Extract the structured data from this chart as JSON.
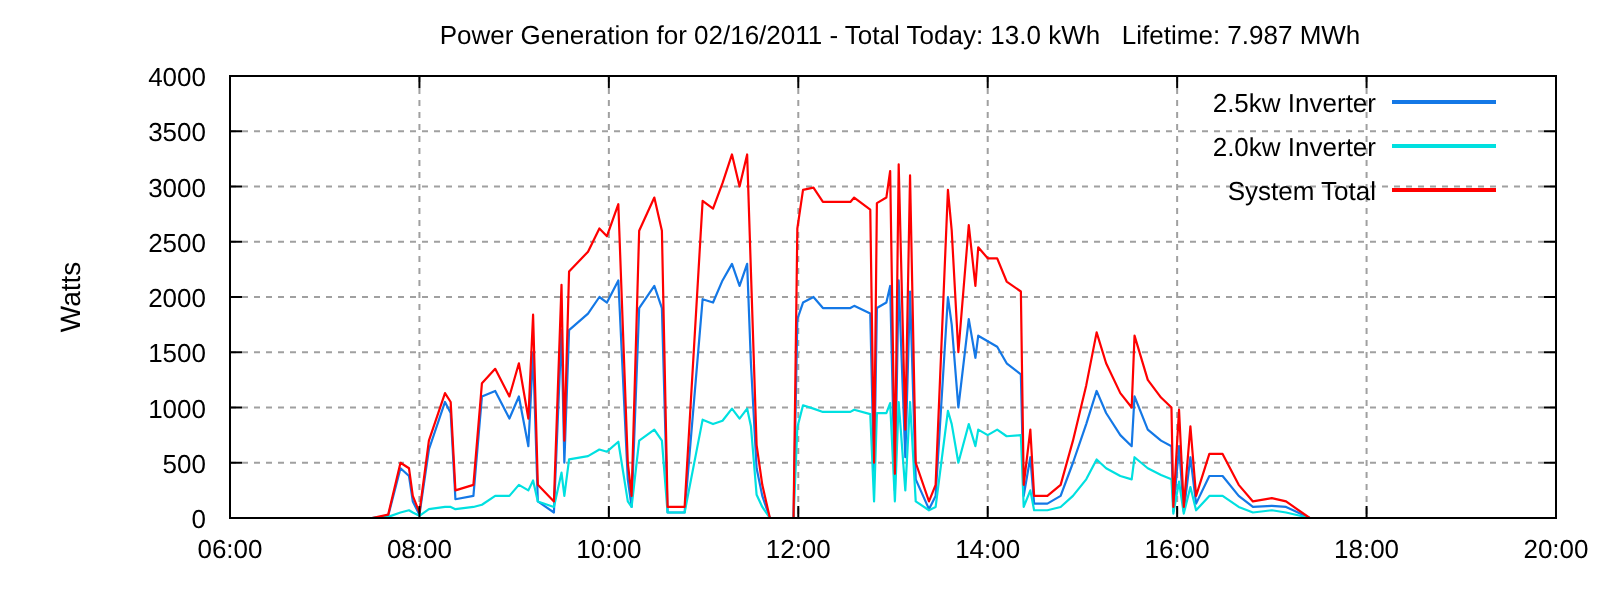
{
  "chart_data": {
    "type": "line",
    "title": "Power Generation for 02/16/2011 - Total Today: 13.0 kWh   Lifetime: 7.987 MWh",
    "ylabel": "Watts",
    "x": [
      7.5,
      7.67,
      7.8,
      7.89,
      7.93,
      8.0,
      8.1,
      8.27,
      8.33,
      8.38,
      8.57,
      8.66,
      8.8,
      8.95,
      9.05,
      9.15,
      9.2,
      9.25,
      9.42,
      9.5,
      9.53,
      9.58,
      9.78,
      9.9,
      9.98,
      10.1,
      10.2,
      10.24,
      10.32,
      10.48,
      10.56,
      10.62,
      10.8,
      10.99,
      11.1,
      11.2,
      11.3,
      11.38,
      11.46,
      11.5,
      11.56,
      11.62,
      11.7,
      11.95,
      11.99,
      12.05,
      12.16,
      12.26,
      12.55,
      12.59,
      12.76,
      12.8,
      12.83,
      12.93,
      12.97,
      13.02,
      13.06,
      13.13,
      13.18,
      13.24,
      13.38,
      13.45,
      13.58,
      13.62,
      13.69,
      13.8,
      13.87,
      13.9,
      14.0,
      14.1,
      14.2,
      14.35,
      14.38,
      14.45,
      14.49,
      14.63,
      14.77,
      14.9,
      15.04,
      15.15,
      15.25,
      15.4,
      15.52,
      15.55,
      15.69,
      15.83,
      15.94,
      15.96,
      16.02,
      16.07,
      16.14,
      16.2,
      16.34,
      16.48,
      16.65,
      16.8,
      17.0,
      17.15,
      17.4
    ],
    "series": [
      {
        "name": "2.5kw Inverter",
        "color": "#1478e6",
        "values": [
          0,
          20,
          450,
          380,
          150,
          30,
          620,
          1050,
          950,
          170,
          200,
          1100,
          1150,
          900,
          1100,
          650,
          1500,
          150,
          50,
          1700,
          500,
          1700,
          1850,
          2000,
          1950,
          2150,
          350,
          100,
          1900,
          2100,
          1900,
          50,
          50,
          1980,
          1950,
          2150,
          2300,
          2100,
          2300,
          1400,
          450,
          200,
          0,
          0,
          1800,
          1950,
          2000,
          1900,
          1900,
          1920,
          1850,
          350,
          1900,
          1950,
          2100,
          250,
          2150,
          550,
          2050,
          350,
          80,
          200,
          2000,
          1750,
          1000,
          1800,
          1450,
          1650,
          1600,
          1550,
          1400,
          1300,
          200,
          550,
          130,
          130,
          200,
          500,
          850,
          1150,
          950,
          750,
          650,
          1100,
          800,
          700,
          650,
          60,
          650,
          60,
          550,
          130,
          380,
          380,
          200,
          100,
          110,
          100,
          0
        ]
      },
      {
        "name": "2.0kw Inverter",
        "color": "#00e0e0",
        "values": [
          0,
          10,
          50,
          70,
          50,
          20,
          80,
          100,
          100,
          80,
          100,
          120,
          200,
          200,
          300,
          250,
          340,
          150,
          100,
          410,
          200,
          530,
          560,
          620,
          600,
          690,
          150,
          100,
          700,
          800,
          700,
          50,
          50,
          890,
          850,
          880,
          990,
          900,
          990,
          830,
          210,
          100,
          0,
          0,
          820,
          1020,
          990,
          960,
          960,
          980,
          940,
          150,
          950,
          950,
          1040,
          150,
          1050,
          250,
          1050,
          150,
          70,
          100,
          970,
          850,
          500,
          850,
          650,
          800,
          750,
          800,
          740,
          750,
          100,
          250,
          70,
          70,
          100,
          200,
          350,
          530,
          450,
          380,
          350,
          550,
          450,
          390,
          350,
          40,
          330,
          40,
          280,
          70,
          200,
          200,
          100,
          50,
          70,
          50,
          0
        ]
      },
      {
        "name": "System Total",
        "color": "#ff0000",
        "values": [
          0,
          30,
          500,
          450,
          200,
          50,
          700,
          1130,
          1050,
          250,
          300,
          1220,
          1350,
          1100,
          1400,
          900,
          1840,
          300,
          150,
          2110,
          700,
          2230,
          2410,
          2620,
          2550,
          2840,
          500,
          200,
          2600,
          2900,
          2600,
          100,
          100,
          2870,
          2800,
          3030,
          3290,
          3000,
          3290,
          2230,
          660,
          300,
          0,
          0,
          2620,
          2970,
          2990,
          2860,
          2860,
          2900,
          2790,
          500,
          2850,
          2900,
          3140,
          400,
          3200,
          800,
          3100,
          500,
          150,
          300,
          2970,
          2600,
          1500,
          2650,
          2100,
          2450,
          2350,
          2350,
          2140,
          2050,
          300,
          800,
          200,
          200,
          300,
          700,
          1200,
          1680,
          1400,
          1130,
          1000,
          1650,
          1250,
          1090,
          1000,
          100,
          980,
          100,
          830,
          200,
          580,
          580,
          300,
          150,
          180,
          150,
          0
        ]
      }
    ],
    "xlim": [
      6,
      20
    ],
    "xticks": [
      {
        "value": 6,
        "label": "06:00"
      },
      {
        "value": 8,
        "label": "08:00"
      },
      {
        "value": 10,
        "label": "10:00"
      },
      {
        "value": 12,
        "label": "12:00"
      },
      {
        "value": 14,
        "label": "14:00"
      },
      {
        "value": 16,
        "label": "16:00"
      },
      {
        "value": 18,
        "label": "18:00"
      },
      {
        "value": 20,
        "label": "20:00"
      }
    ],
    "ylim": [
      0,
      4000
    ],
    "yticks": [
      0,
      500,
      1000,
      1500,
      2000,
      2500,
      3000,
      3500,
      4000
    ],
    "grid": true,
    "legend": "top right",
    "line_style": "solid",
    "marker": "none"
  }
}
